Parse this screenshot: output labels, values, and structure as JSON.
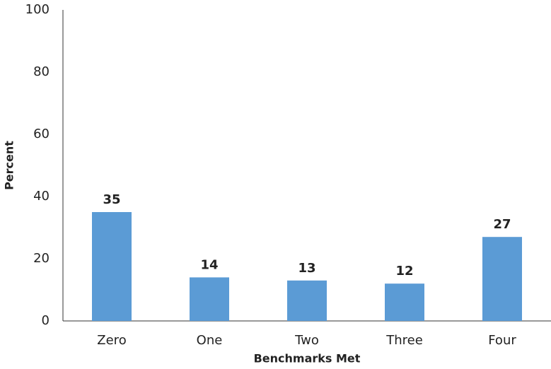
{
  "chart_data": {
    "type": "bar",
    "x_label": "Benchmarks Met",
    "y_label": "Percent",
    "categories": [
      "Zero",
      "One",
      "Two",
      "Three",
      "Four"
    ],
    "values": [
      35,
      14,
      13,
      12,
      27
    ],
    "color": "#5b9bd5",
    "ylim": [
      0,
      100
    ],
    "yticks": [
      0,
      20,
      40,
      60,
      80,
      100
    ],
    "grid": false
  }
}
